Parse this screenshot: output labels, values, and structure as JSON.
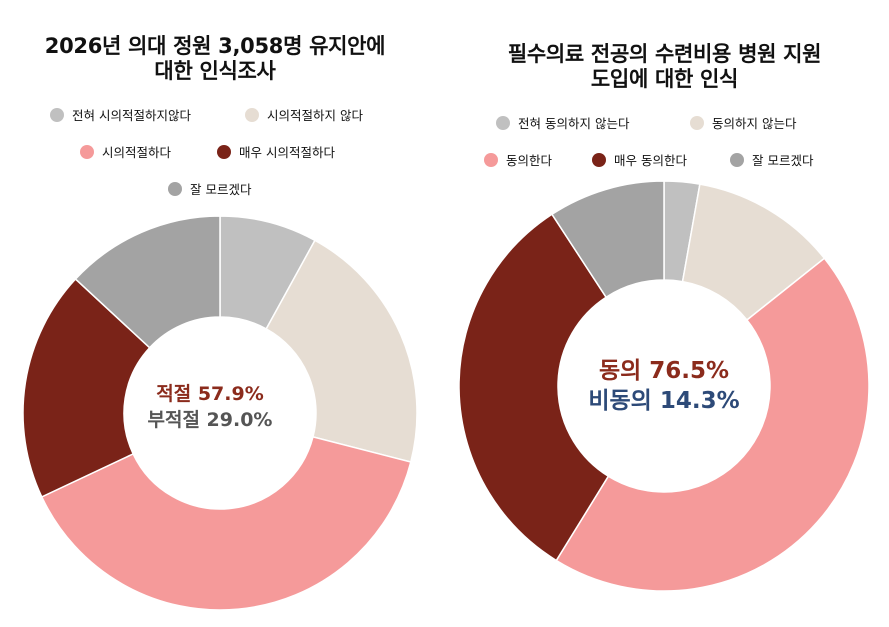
{
  "chart_data": [
    {
      "type": "pie",
      "title": "2026년 의대 정원 3,058명 유지안에\n대한 인식조사",
      "categories": [
        "전혀 시의적절하지않다",
        "시의적절하지 않다",
        "시의적절하다",
        "매우 시의적절하다",
        "잘 모르겠다"
      ],
      "values": [
        8.0,
        21.0,
        39.0,
        18.9,
        13.1
      ],
      "colors": [
        "#c0c0c0",
        "#e6ddd3",
        "#f59a9a",
        "#7a2318",
        "#a3a3a3"
      ],
      "center_labels": [
        {
          "text": "적절 57.9%",
          "color": "#8b2b1c"
        },
        {
          "text": "부적절 29.0%",
          "color": "#555555"
        }
      ]
    },
    {
      "type": "pie",
      "title": "필수의료 전공의 수련비용 병원 지원\n도입에 대한 인식",
      "categories": [
        "전혀 동의하지 않는다",
        "동의하지 않는다",
        "동의한다",
        "매우 동의한다",
        "잘 모르겠다"
      ],
      "values": [
        2.8,
        11.5,
        44.5,
        32.0,
        9.2
      ],
      "colors": [
        "#c0c0c0",
        "#e6ddd3",
        "#f59a9a",
        "#7a2318",
        "#a3a3a3"
      ],
      "center_labels": [
        {
          "text": "동의 76.5%",
          "color": "#8b2b1c"
        },
        {
          "text": "비동의 14.3%",
          "color": "#2d4a78"
        }
      ]
    }
  ]
}
